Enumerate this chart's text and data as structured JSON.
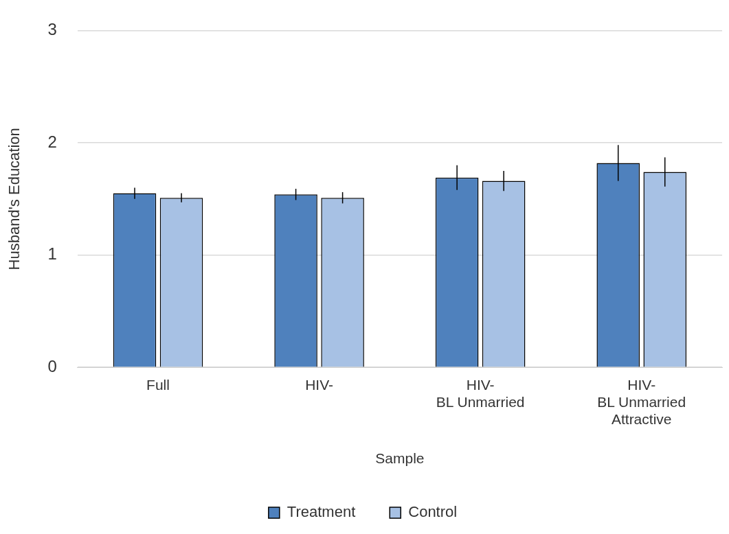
{
  "chart_data": {
    "type": "bar",
    "xlabel": "Sample",
    "ylabel": "Husband's Education",
    "categories": [
      "Full",
      "HIV-",
      "HIV-\nBL Unmarried",
      "HIV-\nBL Unmarried\nAttractive"
    ],
    "series": [
      {
        "name": "Treatment",
        "color": "#4f81bd",
        "values": [
          1.55,
          1.54,
          1.69,
          1.82
        ],
        "errors": [
          0.05,
          0.05,
          0.11,
          0.16
        ]
      },
      {
        "name": "Control",
        "color": "#a7c1e4",
        "values": [
          1.51,
          1.51,
          1.66,
          1.74
        ],
        "errors": [
          0.04,
          0.05,
          0.09,
          0.13
        ]
      }
    ],
    "ylim": [
      0,
      3
    ],
    "yticks": [
      0,
      1,
      2,
      3
    ],
    "grid": "y",
    "legend": "bottom"
  }
}
